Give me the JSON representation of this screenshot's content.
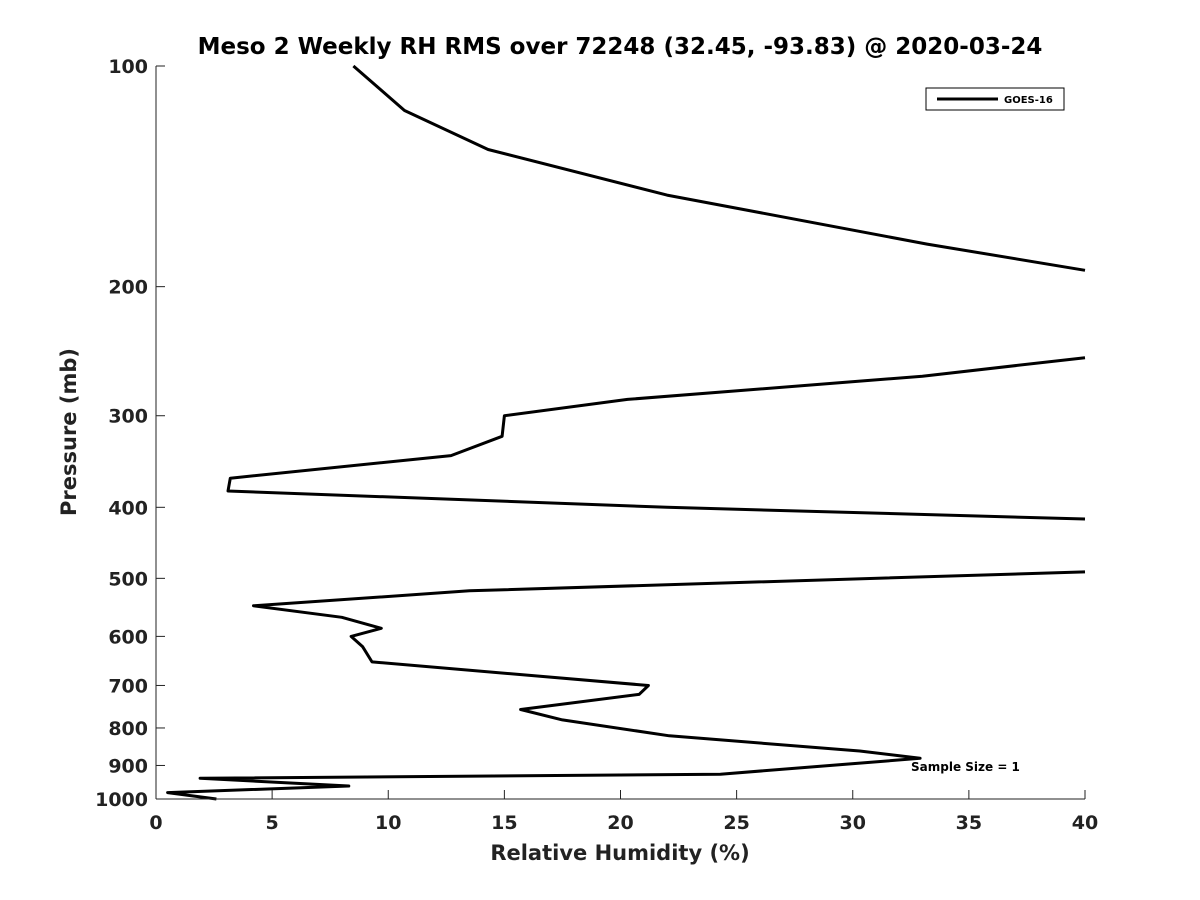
{
  "chart_data": {
    "type": "line",
    "title": "Meso 2 Weekly RH RMS over 72248 (32.45, -93.83) @ 2020-03-24",
    "xlabel": "Relative Humidity (%)",
    "ylabel": "Pressure (mb)",
    "xlim": [
      0,
      40
    ],
    "ylim": [
      100,
      1000
    ],
    "y_scale": "log",
    "y_reversed": true,
    "grid": false,
    "legend_position": "top-right",
    "x_ticks": [
      0,
      5,
      10,
      15,
      20,
      25,
      30,
      35,
      40
    ],
    "x_tick_labels": [
      "0",
      "5",
      "10",
      "15",
      "20",
      "25",
      "30",
      "35",
      "40"
    ],
    "y_ticks": [
      100,
      200,
      300,
      400,
      500,
      600,
      700,
      800,
      900,
      1000
    ],
    "y_tick_labels": [
      "100",
      "200",
      "300",
      "400",
      "500",
      "600",
      "700",
      "800",
      "900",
      "1000"
    ],
    "annotations": [
      "Sample Size = 1"
    ],
    "series": [
      {
        "name": "GOES-16",
        "color": "#000000",
        "segments": [
          [
            {
              "x": 8.5,
              "y": 100
            },
            {
              "x": 10.7,
              "y": 115
            },
            {
              "x": 14.3,
              "y": 130
            },
            {
              "x": 22.0,
              "y": 150
            },
            {
              "x": 33.2,
              "y": 175
            },
            {
              "x": 40.0,
              "y": 190
            }
          ],
          [
            {
              "x": 40.0,
              "y": 250
            },
            {
              "x": 33.0,
              "y": 265
            },
            {
              "x": 20.3,
              "y": 285
            },
            {
              "x": 15.0,
              "y": 300
            },
            {
              "x": 14.9,
              "y": 320
            },
            {
              "x": 12.7,
              "y": 340
            },
            {
              "x": 3.2,
              "y": 365
            },
            {
              "x": 3.1,
              "y": 380
            },
            {
              "x": 22.0,
              "y": 400
            },
            {
              "x": 40.0,
              "y": 415
            }
          ],
          [
            {
              "x": 40.0,
              "y": 490
            },
            {
              "x": 13.5,
              "y": 520
            },
            {
              "x": 4.2,
              "y": 545
            },
            {
              "x": 8.0,
              "y": 565
            },
            {
              "x": 9.7,
              "y": 585
            },
            {
              "x": 8.4,
              "y": 600
            },
            {
              "x": 8.9,
              "y": 620
            },
            {
              "x": 9.3,
              "y": 650
            },
            {
              "x": 21.2,
              "y": 700
            },
            {
              "x": 20.8,
              "y": 720
            },
            {
              "x": 15.7,
              "y": 755
            },
            {
              "x": 17.5,
              "y": 780
            },
            {
              "x": 22.1,
              "y": 820
            },
            {
              "x": 30.3,
              "y": 860
            },
            {
              "x": 32.9,
              "y": 880
            },
            {
              "x": 24.3,
              "y": 925
            },
            {
              "x": 1.9,
              "y": 937
            },
            {
              "x": 8.3,
              "y": 960
            },
            {
              "x": 0.5,
              "y": 980
            },
            {
              "x": 2.6,
              "y": 1000
            }
          ]
        ]
      }
    ]
  }
}
